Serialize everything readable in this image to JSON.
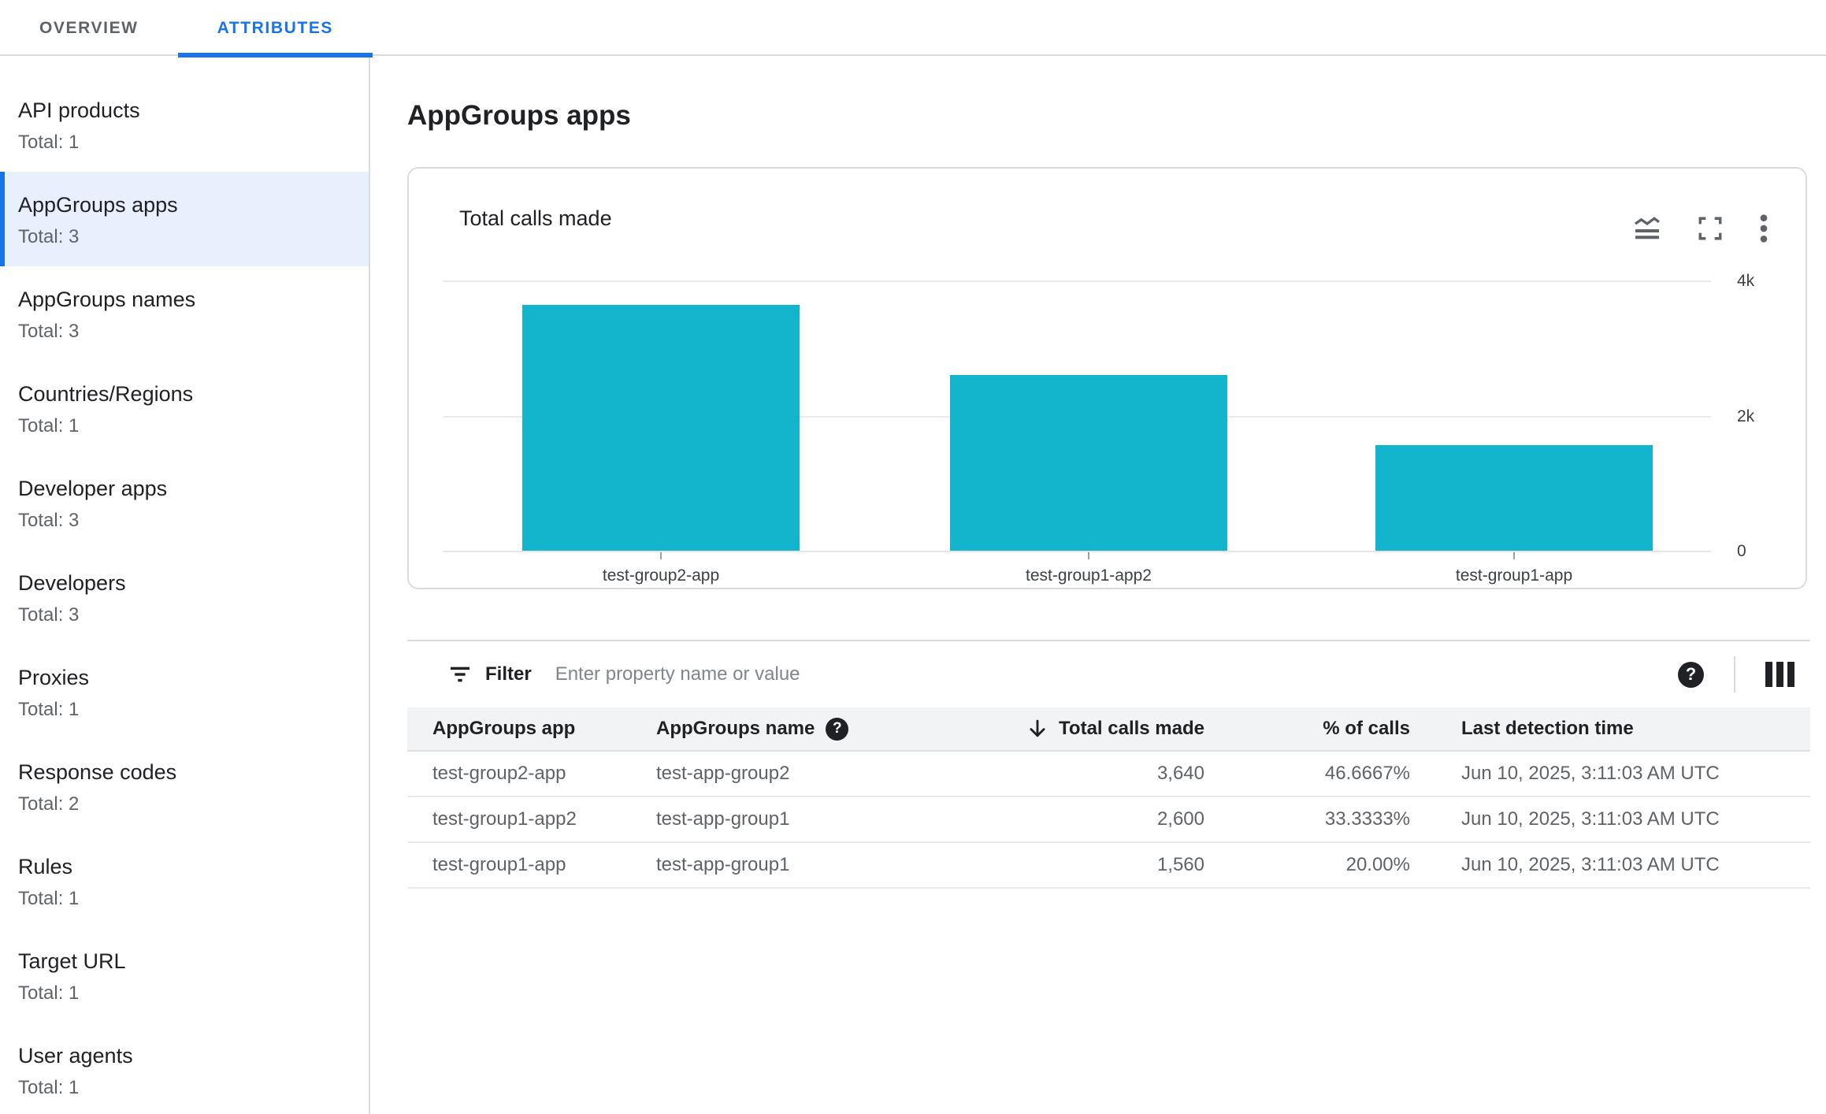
{
  "tabs": [
    {
      "label": "OVERVIEW",
      "active": false
    },
    {
      "label": "ATTRIBUTES",
      "active": true
    }
  ],
  "sidebar": {
    "items": [
      {
        "label": "API products",
        "total": "Total: 1",
        "selected": false
      },
      {
        "label": "AppGroups apps",
        "total": "Total: 3",
        "selected": true
      },
      {
        "label": "AppGroups names",
        "total": "Total: 3",
        "selected": false
      },
      {
        "label": "Countries/Regions",
        "total": "Total: 1",
        "selected": false
      },
      {
        "label": "Developer apps",
        "total": "Total: 3",
        "selected": false
      },
      {
        "label": "Developers",
        "total": "Total: 3",
        "selected": false
      },
      {
        "label": "Proxies",
        "total": "Total: 1",
        "selected": false
      },
      {
        "label": "Response codes",
        "total": "Total: 2",
        "selected": false
      },
      {
        "label": "Rules",
        "total": "Total: 1",
        "selected": false
      },
      {
        "label": "Target URL",
        "total": "Total: 1",
        "selected": false
      },
      {
        "label": "User agents",
        "total": "Total: 1",
        "selected": false
      }
    ]
  },
  "main": {
    "title": "AppGroups apps",
    "card": {
      "title": "Total calls made",
      "icons": [
        "area-chart",
        "fullscreen",
        "more-options"
      ]
    },
    "filter": {
      "label": "Filter",
      "placeholder": "Enter property name or value"
    },
    "table": {
      "headers": {
        "app": "AppGroups app",
        "name": "AppGroups name",
        "calls": "Total calls made",
        "pct": "% of calls",
        "time": "Last detection time"
      },
      "sort": {
        "column": "Total calls made",
        "direction": "desc"
      },
      "rows": [
        {
          "app": "test-group2-app",
          "name": "test-app-group2",
          "calls": "3,640",
          "pct": "46.6667%",
          "time": "Jun 10, 2025, 3:11:03 AM UTC"
        },
        {
          "app": "test-group1-app2",
          "name": "test-app-group1",
          "calls": "2,600",
          "pct": "33.3333%",
          "time": "Jun 10, 2025, 3:11:03 AM UTC"
        },
        {
          "app": "test-group1-app",
          "name": "test-app-group1",
          "calls": "1,560",
          "pct": "20.00%",
          "time": "Jun 10, 2025, 3:11:03 AM UTC"
        }
      ]
    }
  },
  "chart_data": {
    "type": "bar",
    "title": "Total calls made",
    "categories": [
      "test-group2-app",
      "test-group1-app2",
      "test-group1-app"
    ],
    "values": [
      3640,
      2600,
      1560
    ],
    "bar_color": "#12b5cb",
    "xlabel": "",
    "ylabel": "",
    "ylim": [
      0,
      4000
    ],
    "yticks": [
      {
        "value": 4000,
        "label": "4k"
      },
      {
        "value": 2000,
        "label": "2k"
      },
      {
        "value": 0,
        "label": "0"
      }
    ],
    "grid": true,
    "y_axis_position": "right",
    "legend": false
  },
  "colors": {
    "accent": "#1a73e8",
    "selected_bg": "#e8f0fe",
    "bar": "#12b5cb",
    "border": "#dadce0",
    "header_bg": "#f1f3f4",
    "text_primary": "#202124",
    "text_secondary": "#5f6368"
  }
}
